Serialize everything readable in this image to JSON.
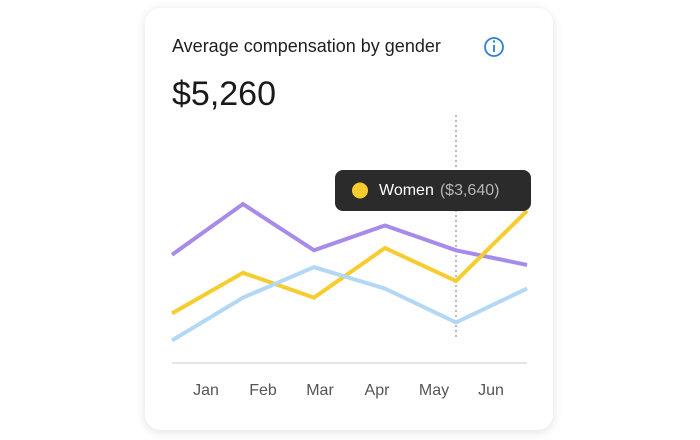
{
  "chart_data": {
    "type": "line",
    "title": "Average compensation by gender",
    "headline": "$5,260",
    "categories": [
      "Jan",
      "Feb",
      "Mar",
      "Apr",
      "May",
      "Jun"
    ],
    "ylim": [
      0,
      11000
    ],
    "grid": false,
    "series": [
      {
        "color": "#a78bea",
        "values": [
          4800,
          7050,
          5000,
          6100,
          5000,
          4350
        ]
      },
      {
        "name": "Women",
        "color": "#f7cc2e",
        "values": [
          2200,
          4000,
          2900,
          5100,
          3640,
          6750
        ],
        "value_labels": [
          null,
          null,
          null,
          null,
          "($3,640)",
          null
        ]
      },
      {
        "color": "#b3d8f5",
        "values": [
          1000,
          2900,
          4250,
          3300,
          1800,
          3300
        ]
      }
    ]
  }
}
